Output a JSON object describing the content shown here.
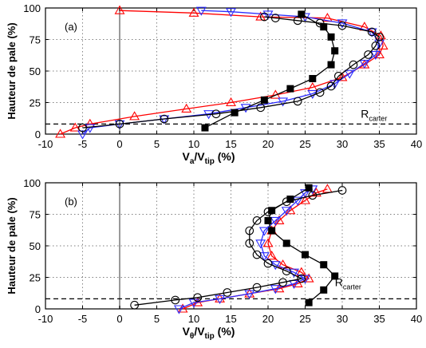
{
  "figure_name": "velocity-profiles",
  "chart_data": [
    {
      "id": "a",
      "type": "line",
      "panel_label": "(a)",
      "ylabel": "Hauteur de pale (%)",
      "xlabel_main": "V",
      "xlabel_sub1": "a",
      "xlabel_mid": "/V",
      "xlabel_sub2": "tip",
      "xlabel_tail": " (%)",
      "xlim": [
        -10,
        40
      ],
      "ylim": [
        0,
        100
      ],
      "xticks": [
        -10,
        -5,
        0,
        5,
        10,
        15,
        20,
        25,
        30,
        35,
        40
      ],
      "yticks": [
        0,
        25,
        50,
        75,
        100
      ],
      "grid": true,
      "annotation_main": "R",
      "annotation_sub": "carter",
      "annotation_pos": {
        "x": 32.5,
        "y": 13
      },
      "casing_line_y": 8,
      "series": [
        {
          "color": "#ff0000",
          "marker": "triangle",
          "x": [
            -8,
            -6,
            -4,
            2,
            9,
            15,
            21,
            26,
            30,
            33,
            35,
            35.5,
            35.2,
            33,
            28,
            19,
            10,
            0
          ],
          "y": [
            0,
            5,
            8,
            14,
            20,
            25,
            31,
            37,
            45,
            55,
            63,
            70,
            78,
            85,
            92,
            93,
            96,
            98
          ]
        },
        {
          "color": "#2b2bff",
          "marker": "triangle-down",
          "x": [
            -5,
            -4,
            0,
            6,
            12,
            17,
            22,
            26,
            29,
            31,
            33,
            34.5,
            35,
            34,
            30,
            25,
            20,
            15,
            11
          ],
          "y": [
            0,
            5,
            8,
            12,
            16,
            21,
            26,
            32,
            40,
            48,
            56,
            63,
            72,
            81,
            88,
            93,
            95,
            97,
            98
          ]
        },
        {
          "color": "#000000",
          "marker": "circle",
          "x": [
            -5,
            0,
            6,
            13,
            19,
            24,
            27,
            28.5,
            29.5,
            31.5,
            33.5,
            34.5,
            35,
            34,
            30,
            27,
            24,
            21,
            19.5
          ],
          "y": [
            5,
            8,
            12,
            16,
            21,
            26,
            33,
            38,
            46,
            55,
            63,
            70,
            77,
            81,
            86,
            88,
            90,
            92,
            93
          ]
        },
        {
          "color": "#000000",
          "marker": "square",
          "x": [
            11.5,
            15.5,
            19.5,
            23,
            26,
            28.5,
            29,
            28.5,
            27.5,
            24.5
          ],
          "y": [
            5,
            17,
            27,
            36,
            44,
            55,
            66,
            77,
            85,
            95
          ]
        }
      ]
    },
    {
      "id": "b",
      "type": "line",
      "panel_label": "(b)",
      "ylabel": "Hauteur de pale (%)",
      "xlabel_main": "V",
      "xlabel_sub1": "θ",
      "xlabel_mid": "/V",
      "xlabel_sub2": "tip",
      "xlabel_tail": " (%)",
      "xlim": [
        -10,
        40
      ],
      "ylim": [
        0,
        100
      ],
      "xticks": [
        -10,
        -5,
        0,
        5,
        10,
        15,
        20,
        25,
        30,
        35,
        40
      ],
      "yticks": [
        0,
        25,
        50,
        75,
        100
      ],
      "grid": true,
      "annotation_main": "R",
      "annotation_sub": "carter",
      "annotation_pos": {
        "x": 29,
        "y": 18
      },
      "casing_line_y": 8,
      "series": [
        {
          "color": "#ff0000",
          "marker": "triangle",
          "x": [
            8.5,
            10.5,
            13.5,
            17.5,
            21.5,
            24,
            25.5,
            24.5,
            22,
            20.5,
            20,
            20.5,
            21.5,
            23,
            25,
            26.5,
            28
          ],
          "y": [
            0,
            5,
            8,
            12,
            16,
            20,
            24,
            29,
            35,
            42,
            52,
            62,
            70,
            78,
            86,
            92,
            95
          ]
        },
        {
          "color": "#2b2bff",
          "marker": "triangle-down",
          "x": [
            8,
            10,
            13.5,
            17.5,
            21,
            23.5,
            25,
            23.5,
            21,
            19.5,
            19,
            19.5,
            21,
            22.5,
            24,
            25,
            26
          ],
          "y": [
            0,
            5,
            8,
            12,
            16,
            20,
            24,
            29,
            35,
            42,
            52,
            62,
            70,
            78,
            86,
            92,
            95
          ]
        },
        {
          "color": "#000000",
          "marker": "circle",
          "x": [
            2,
            7.5,
            10.5,
            14.5,
            18.5,
            22,
            24.5,
            22.5,
            20,
            18.5,
            17.5,
            17.5,
            18.5,
            20,
            22.5,
            26,
            30
          ],
          "y": [
            3,
            7,
            9,
            13,
            17,
            21,
            24,
            30,
            36,
            43,
            52,
            62,
            70,
            77,
            85,
            90,
            94
          ]
        },
        {
          "color": "#000000",
          "marker": "square",
          "x": [
            25.5,
            27.5,
            29,
            27.5,
            25,
            22.5,
            20.5,
            20,
            20.5,
            23,
            25.5
          ],
          "y": [
            5,
            15,
            26,
            35,
            43,
            52,
            62,
            70,
            78,
            87,
            96
          ]
        }
      ]
    }
  ]
}
